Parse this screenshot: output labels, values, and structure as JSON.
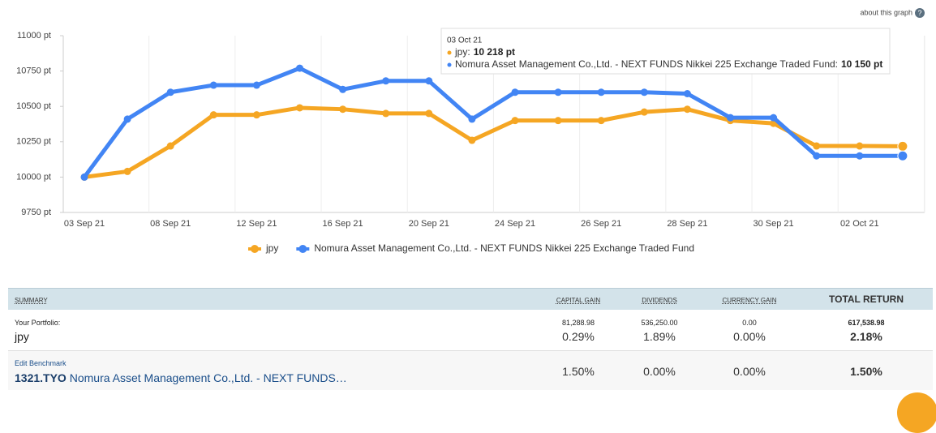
{
  "about": "about this graph",
  "chart_data": {
    "type": "line",
    "categories": [
      "03 Sep 21",
      null,
      "08 Sep 21",
      null,
      "12 Sep 21",
      null,
      "16 Sep 21",
      null,
      "20 Sep 21",
      null,
      "24 Sep 21",
      null,
      "26 Sep 21",
      null,
      "28 Sep 21",
      null,
      "30 Sep 21",
      null,
      "02 Oct 21",
      null
    ],
    "series": [
      {
        "name": "jpy",
        "color": "#f5a623",
        "values": [
          10000,
          10040,
          10220,
          10440,
          10440,
          10490,
          10480,
          10450,
          10450,
          10260,
          10400,
          10400,
          10400,
          10460,
          10480,
          10400,
          10380,
          10220,
          10220,
          10218
        ]
      },
      {
        "name": "Nomura Asset Management Co.,Ltd. - NEXT FUNDS Nikkei 225 Exchange Traded Fund",
        "color": "#4285f4",
        "values": [
          10000,
          10410,
          10600,
          10650,
          10650,
          10770,
          10620,
          10680,
          10680,
          10410,
          10600,
          10600,
          10600,
          10600,
          10590,
          10420,
          10420,
          10150,
          10150,
          10150
        ]
      }
    ],
    "ylim": [
      9750,
      11000
    ],
    "yticks": [
      {
        "value": 9750,
        "label": "9750 pt"
      },
      {
        "value": 10000,
        "label": "10000 pt"
      },
      {
        "value": 10250,
        "label": "10250 pt"
      },
      {
        "value": 10500,
        "label": "10500 pt"
      },
      {
        "value": 10750,
        "label": "10750 pt"
      },
      {
        "value": 11000,
        "label": "11000 pt"
      }
    ],
    "legend": "bottom",
    "tooltip": {
      "date": "03 Oct 21",
      "items": [
        {
          "label": "jpy:",
          "value": "10 218 pt"
        },
        {
          "label": "Nomura Asset Management Co.,Ltd. - NEXT FUNDS Nikkei 225 Exchange Traded Fund:",
          "value": "10 150 pt"
        }
      ]
    }
  },
  "table": {
    "headers": [
      "SUMMARY",
      "CAPITAL GAIN",
      "DIVIDENDS",
      "CURRENCY GAIN",
      "TOTAL RETURN"
    ],
    "portfolio": {
      "label": "Your Portfolio:",
      "name": "jpy",
      "amounts": [
        "81,288.98",
        "536,250.00",
        "0.00",
        "617,538.98"
      ],
      "percents": [
        "0.29%",
        "1.89%",
        "0.00%",
        "2.18%"
      ]
    },
    "benchmark": {
      "label": "Edit Benchmark",
      "ticker": "1321.TYO",
      "name": "Nomura Asset Management Co.,Ltd. - NEXT FUNDS…",
      "percents": [
        "1.50%",
        "0.00%",
        "0.00%",
        "1.50%"
      ]
    }
  }
}
